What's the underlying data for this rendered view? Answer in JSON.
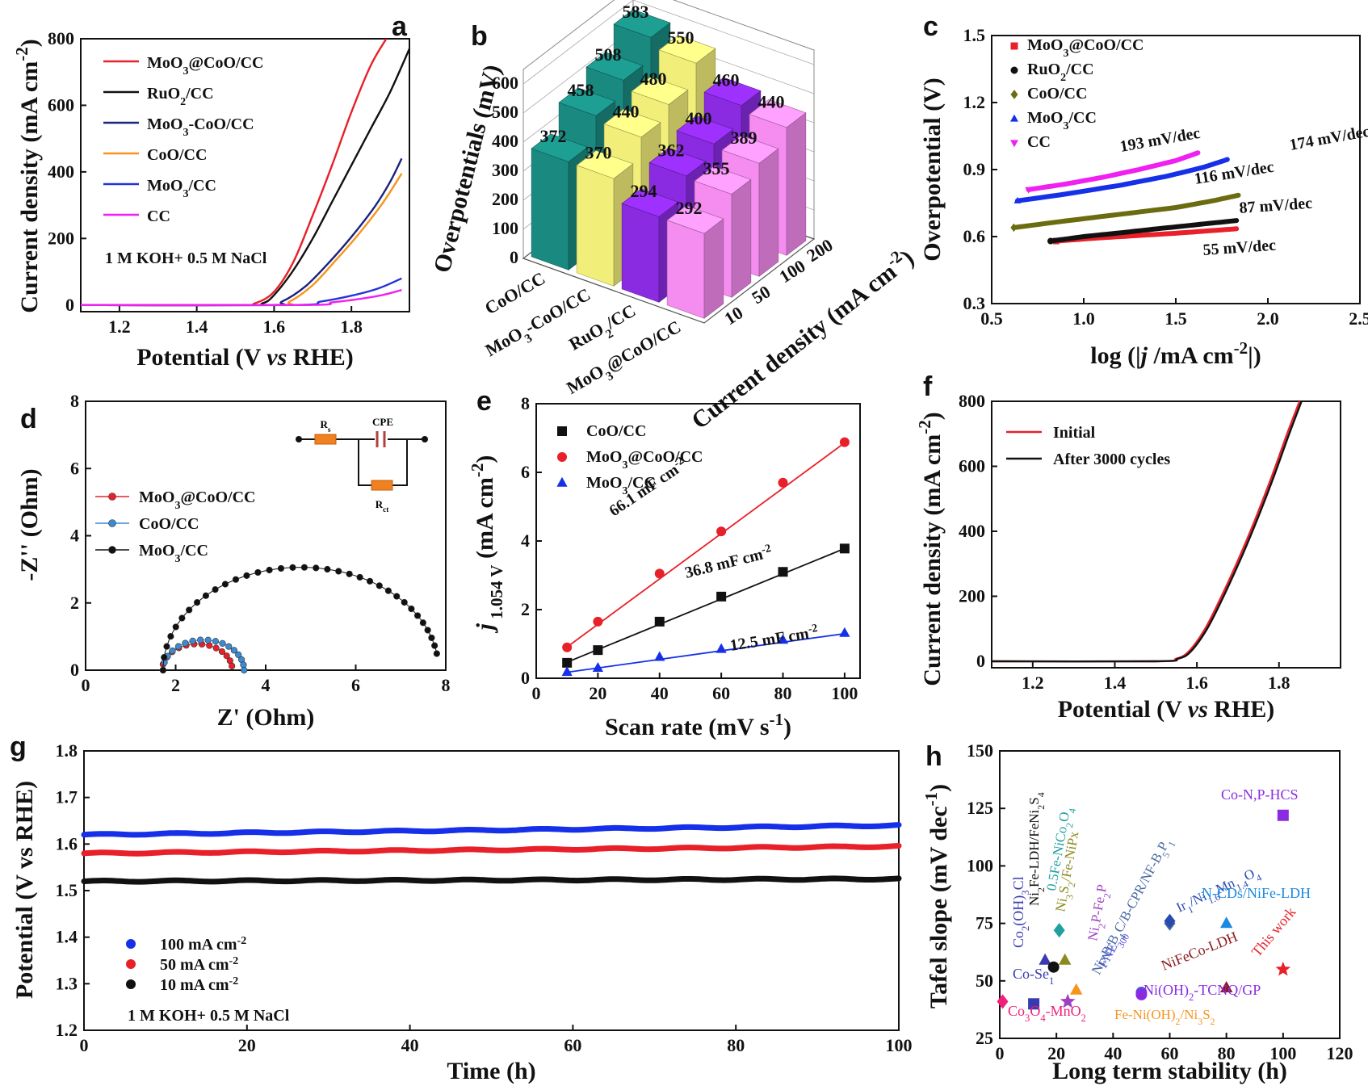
{
  "figure": {
    "panel_labels": [
      "a",
      "b",
      "c",
      "d",
      "e",
      "f",
      "g",
      "h"
    ]
  },
  "chart_data": [
    {
      "panel": "a",
      "type": "line",
      "xlabel": "Potential (V vs RHE)",
      "ylabel": "Current density (mA cm-2)",
      "xlim": [
        1.1,
        1.95
      ],
      "ylim": [
        -20,
        800
      ],
      "xticks": [
        1.2,
        1.4,
        1.6,
        1.8
      ],
      "yticks": [
        0,
        200,
        400,
        600,
        800
      ],
      "annotation": "1 M KOH+ 0.5 M NaCl",
      "series": [
        {
          "name": "MoO3@CoO/CC",
          "color": "#e8202a",
          "x": [
            1.1,
            1.5,
            1.55,
            1.6,
            1.65,
            1.7,
            1.75,
            1.8,
            1.85,
            1.89
          ],
          "y": [
            0,
            0,
            5,
            40,
            130,
            270,
            420,
            580,
            720,
            800
          ]
        },
        {
          "name": "RuO2/CC",
          "color": "#111111",
          "x": [
            1.1,
            1.52,
            1.57,
            1.6,
            1.65,
            1.7,
            1.75,
            1.8,
            1.85,
            1.9,
            1.95
          ],
          "y": [
            0,
            0,
            5,
            30,
            105,
            200,
            310,
            420,
            530,
            640,
            770
          ]
        },
        {
          "name": "MoO3-CoO/CC",
          "color": "#1a237e",
          "x": [
            1.1,
            1.58,
            1.62,
            1.68,
            1.74,
            1.8,
            1.86,
            1.9,
            1.93
          ],
          "y": [
            0,
            0,
            10,
            55,
            125,
            205,
            295,
            370,
            440
          ]
        },
        {
          "name": "CoO/CC",
          "color": "#f7941d",
          "x": [
            1.1,
            1.6,
            1.64,
            1.7,
            1.76,
            1.82,
            1.88,
            1.93
          ],
          "y": [
            0,
            0,
            10,
            60,
            135,
            215,
            305,
            395
          ]
        },
        {
          "name": "MoO3/CC",
          "color": "#2533d9",
          "x": [
            1.1,
            1.65,
            1.72,
            1.8,
            1.87,
            1.93
          ],
          "y": [
            0,
            0,
            10,
            28,
            50,
            80
          ]
        },
        {
          "name": "CC",
          "color": "#f020f0",
          "x": [
            1.1,
            1.68,
            1.75,
            1.82,
            1.88,
            1.93
          ],
          "y": [
            0,
            0,
            8,
            18,
            30,
            45
          ]
        }
      ]
    },
    {
      "panel": "b",
      "type": "bar3d",
      "zlabel": "Overpotentials (mV)",
      "xlabel": "Current density (mA cm-2)",
      "zticks": [
        0,
        100,
        200,
        300,
        400,
        500,
        600
      ],
      "depth_ticks": [
        "10",
        "50",
        "100",
        "200"
      ],
      "categories": [
        "CoO/CC",
        "MoO3-CoO/CC",
        "RuO2/CC",
        "MoO3@CoO/CC"
      ],
      "series": [
        {
          "name": "CoO/CC",
          "color": "#1a8a80",
          "values": [
            372,
            458,
            508,
            583
          ]
        },
        {
          "name": "MoO3-CoO/CC",
          "color": "#f2ee7a",
          "values": [
            370,
            440,
            480,
            550
          ]
        },
        {
          "name": "RuO2/CC",
          "color": "#8a2be2",
          "values": [
            294,
            362,
            400,
            460
          ]
        },
        {
          "name": "MoO3@CoO/CC",
          "color": "#f58cf0",
          "values": [
            292,
            355,
            389,
            440
          ]
        }
      ]
    },
    {
      "panel": "c",
      "type": "scatter",
      "xlabel": "log (|j /mA cm-2|)",
      "ylabel": "Overpotential (V)",
      "xlim": [
        0.5,
        2.5
      ],
      "ylim": [
        0.3,
        1.5
      ],
      "xticks": [
        0.5,
        1.0,
        1.5,
        2.0,
        2.5
      ],
      "yticks": [
        0.3,
        0.6,
        0.9,
        1.2,
        1.5
      ],
      "series": [
        {
          "name": "MoO3@CoO/CC",
          "color": "#e8202a",
          "marker": "square",
          "x": [
            0.85,
            1.1,
            1.3,
            1.5,
            1.7,
            1.83
          ],
          "y": [
            0.58,
            0.595,
            0.605,
            0.615,
            0.627,
            0.635
          ],
          "slope": "55 mV/dec",
          "slope_color": "#e8202a"
        },
        {
          "name": "RuO2/CC",
          "color": "#111111",
          "marker": "circle",
          "x": [
            0.82,
            1.0,
            1.2,
            1.4,
            1.6,
            1.83
          ],
          "y": [
            0.58,
            0.6,
            0.617,
            0.635,
            0.652,
            0.672
          ],
          "slope": "87 mV/dec",
          "slope_color": "#111111"
        },
        {
          "name": "CoO/CC",
          "color": "#6b6b10",
          "marker": "diamond",
          "x": [
            0.62,
            0.9,
            1.2,
            1.5,
            1.7,
            1.84
          ],
          "y": [
            0.64,
            0.67,
            0.7,
            0.73,
            0.76,
            0.785
          ],
          "slope": "116 mV/dec",
          "slope_color": "#6b6b10"
        },
        {
          "name": "MoO3/CC",
          "color": "#1530e8",
          "marker": "triangle",
          "x": [
            0.64,
            0.9,
            1.2,
            1.45,
            1.65,
            1.78
          ],
          "y": [
            0.76,
            0.79,
            0.83,
            0.87,
            0.91,
            0.945
          ],
          "slope": "174 mV/dec",
          "slope_color": "#1530e8"
        },
        {
          "name": "CC",
          "color": "#f020f0",
          "marker": "triangle-down",
          "x": [
            0.7,
            0.9,
            1.1,
            1.3,
            1.5,
            1.62
          ],
          "y": [
            0.81,
            0.835,
            0.865,
            0.9,
            0.94,
            0.975
          ],
          "slope": "193 mV/dec",
          "slope_color": "#f020f0"
        }
      ]
    },
    {
      "panel": "d",
      "type": "scatter",
      "xlabel": "Z' (Ohm)",
      "ylabel": "-Z'' (Ohm)",
      "xlim": [
        0,
        8
      ],
      "ylim": [
        0,
        8
      ],
      "xticks": [
        0,
        2,
        4,
        6,
        8
      ],
      "yticks": [
        0,
        2,
        4,
        6,
        8
      ],
      "circuit_labels": [
        "Rs",
        "CPE",
        "Rct"
      ],
      "series": [
        {
          "name": "MoO3@CoO/CC",
          "color": "#e8202a",
          "center": 2.48,
          "radius": 0.78,
          "x_start": 1.72,
          "x_end": 3.25,
          "points": 12
        },
        {
          "name": "CoO/CC",
          "color": "#3c8ad0",
          "center": 2.62,
          "radius": 0.9,
          "x_start": 1.72,
          "x_end": 3.8,
          "points": 16
        },
        {
          "name": "MoO3/CC",
          "color": "#111111",
          "center": 4.78,
          "radius": 3.06,
          "x_start": 1.72,
          "x_end": 7.8,
          "points": 34
        }
      ]
    },
    {
      "panel": "e",
      "type": "scatter",
      "xlabel": "Scan rate (mV s-1)",
      "ylabel": "j 1.054 V (mA cm-2)",
      "xlim": [
        0,
        105
      ],
      "ylim": [
        0,
        8
      ],
      "xticks": [
        0,
        10,
        20,
        30,
        40,
        50,
        60,
        70,
        80,
        90,
        100
      ],
      "yticks": [
        0,
        2,
        4,
        6,
        8
      ],
      "series": [
        {
          "name": "CoO/CC",
          "color": "#111111",
          "marker": "square",
          "x": [
            10,
            20,
            40,
            60,
            80,
            100
          ],
          "y": [
            0.45,
            0.82,
            1.65,
            2.38,
            3.1,
            3.78
          ],
          "fit": [
            0.1,
            0.0368
          ],
          "label": "36.8 mF cm-2"
        },
        {
          "name": "MoO3@CoO/CC",
          "color": "#e8202a",
          "marker": "circle",
          "x": [
            10,
            20,
            40,
            60,
            80,
            100
          ],
          "y": [
            0.9,
            1.65,
            3.05,
            4.28,
            5.7,
            6.88
          ],
          "fit": [
            0.25,
            0.0661
          ],
          "label": "66.1 mF cm-2"
        },
        {
          "name": "MoO3/CC",
          "color": "#1530e8",
          "marker": "triangle",
          "x": [
            10,
            20,
            40,
            60,
            80,
            100
          ],
          "y": [
            0.18,
            0.3,
            0.62,
            0.85,
            1.12,
            1.32
          ],
          "fit": [
            0.05,
            0.0125
          ],
          "label": "12.5 mF cm-2"
        }
      ]
    },
    {
      "panel": "f",
      "type": "line",
      "xlabel": "Potential (V vs RHE)",
      "ylabel": "Current density (mA cm-2)",
      "xlim": [
        1.1,
        1.95
      ],
      "ylim": [
        -20,
        800
      ],
      "xticks": [
        1.2,
        1.4,
        1.6,
        1.8
      ],
      "yticks": [
        0,
        200,
        400,
        600,
        800
      ],
      "series": [
        {
          "name": "Initial",
          "color": "#e8202a",
          "x": [
            1.1,
            1.5,
            1.55,
            1.58,
            1.62,
            1.66,
            1.7,
            1.74,
            1.78,
            1.82,
            1.85
          ],
          "y": [
            0,
            0,
            8,
            30,
            100,
            200,
            310,
            430,
            560,
            700,
            800
          ]
        },
        {
          "name": "After 3000 cycles",
          "color": "#111111",
          "x": [
            1.1,
            1.5,
            1.555,
            1.585,
            1.625,
            1.665,
            1.705,
            1.745,
            1.785,
            1.825,
            1.855
          ],
          "y": [
            0,
            0,
            8,
            30,
            100,
            200,
            310,
            430,
            560,
            700,
            800
          ]
        }
      ]
    },
    {
      "panel": "g",
      "type": "scatter",
      "xlabel": "Time (h)",
      "ylabel": "Potential (V vs RHE)",
      "xlim": [
        0,
        100
      ],
      "ylim": [
        1.2,
        1.8
      ],
      "xticks": [
        0,
        20,
        40,
        60,
        80,
        100
      ],
      "yticks": [
        1.2,
        1.3,
        1.4,
        1.5,
        1.6,
        1.7,
        1.8
      ],
      "annotation": "1 M KOH+ 0.5 M NaCl",
      "series": [
        {
          "name": "100 mA cm-2",
          "color": "#1530e8",
          "start": 1.62,
          "end": 1.64
        },
        {
          "name": "50 mA cm-2",
          "color": "#e8202a",
          "start": 1.58,
          "end": 1.595
        },
        {
          "name": "10 mA cm-2",
          "color": "#111111",
          "start": 1.52,
          "end": 1.525
        }
      ]
    },
    {
      "panel": "h",
      "type": "scatter",
      "xlabel": "Long term stability (h)",
      "ylabel": "Tafel slope (mV dec-1)",
      "xlim": [
        0,
        120
      ],
      "ylim": [
        25,
        150
      ],
      "xticks": [
        0,
        20,
        40,
        60,
        80,
        100,
        120
      ],
      "yticks": [
        25,
        50,
        75,
        100,
        125,
        150
      ],
      "points": [
        {
          "name": "Co3O4-MnO2",
          "x": 1,
          "y": 41,
          "color": "#f0207a"
        },
        {
          "name": "Co-Se1",
          "x": 12,
          "y": 40,
          "color": "#3a3ab0"
        },
        {
          "name": "Co2(OH)3Cl",
          "x": 16,
          "y": 59,
          "color": "#3a3ab0"
        },
        {
          "name": "Ni2Fe-LDH/FeNi2S4",
          "x": 19,
          "y": 56,
          "color": "#111111"
        },
        {
          "name": "0.5Fe-NiCo2O4",
          "x": 21,
          "y": 72,
          "color": "#20a0a0"
        },
        {
          "name": "Ni3S2/Fe-NiPx",
          "x": 23,
          "y": 59,
          "color": "#8a8a20"
        },
        {
          "name": "Ni2P-Fe2P",
          "x": 24,
          "y": 41,
          "color": "#a040c0"
        },
        {
          "name": "Fe-Ni(OH)2/Ni3S2",
          "x": 27,
          "y": 46,
          "color": "#f7941d"
        },
        {
          "name": "FNE300",
          "x": 50,
          "y": 45,
          "color": "#5050e0"
        },
        {
          "name": "Ni(OH)2-TCNQ/GP",
          "x": 50,
          "y": 44,
          "color": "#8a2be2"
        },
        {
          "name": "NixB/B4C/B-CPR/NF-B5P1",
          "x": 60,
          "y": 75,
          "color": "#4a6aa0"
        },
        {
          "name": "Ir1/Ni1.6Mn1.4O4",
          "x": 60,
          "y": 76,
          "color": "#2a4ab0"
        },
        {
          "name": "N-CDs/NiFe-LDH",
          "x": 80,
          "y": 75,
          "color": "#1a8ae0"
        },
        {
          "name": "NiFeCo-LDH",
          "x": 80,
          "y": 47,
          "color": "#8a1a1a"
        },
        {
          "name": "Co-N,P-HCS",
          "x": 100,
          "y": 122,
          "color": "#8a2be2"
        },
        {
          "name": "This work",
          "x": 100,
          "y": 55,
          "color": "#e8202a"
        }
      ]
    }
  ]
}
